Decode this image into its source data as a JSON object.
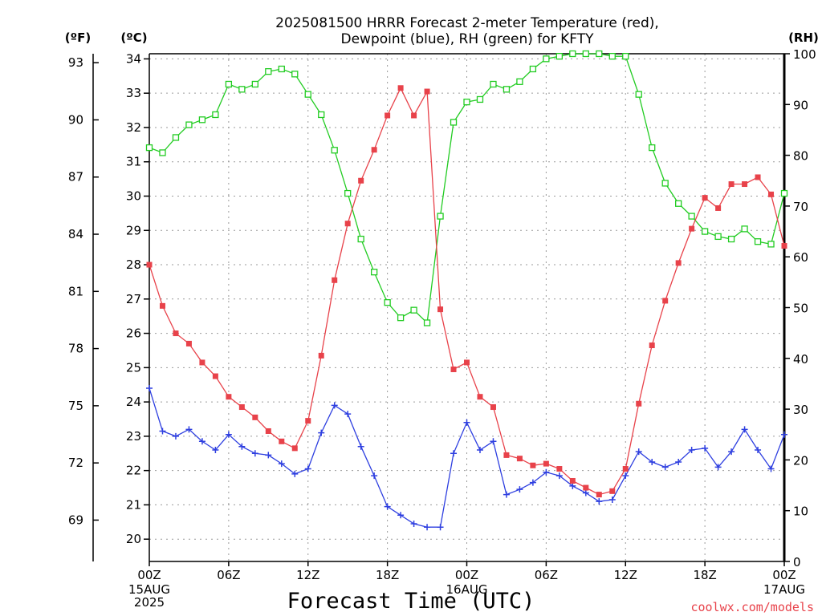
{
  "chart_data": {
    "type": "line",
    "title_lines": [
      "2025081500 HRRR Forecast 2-meter Temperature (red),",
      "Dewpoint (blue), RH (green) for KFTY"
    ],
    "xlabel": "Forecast Time (UTC)",
    "credit": "coolwx.com/models",
    "unit_labels": {
      "fahrenheit": "(ºF)",
      "celsius": "(ºC)",
      "rh": "(RH)"
    },
    "x_ticks": [
      {
        "h": 0,
        "label": "00Z"
      },
      {
        "h": 6,
        "label": "06Z"
      },
      {
        "h": 12,
        "label": "12Z"
      },
      {
        "h": 18,
        "label": "18Z"
      },
      {
        "h": 24,
        "label": "00Z"
      },
      {
        "h": 30,
        "label": "06Z"
      },
      {
        "h": 36,
        "label": "12Z"
      },
      {
        "h": 42,
        "label": "18Z"
      },
      {
        "h": 48,
        "label": "00Z"
      }
    ],
    "date_labels": [
      {
        "h": 0,
        "lines": [
          "15AUG",
          "2025"
        ]
      },
      {
        "h": 24,
        "lines": [
          "16AUG"
        ]
      },
      {
        "h": 48,
        "lines": [
          "17AUG"
        ]
      }
    ],
    "xlim": [
      0,
      48
    ],
    "ylim_c": [
      19.35,
      34.15
    ],
    "ylim_rh": [
      0,
      100
    ],
    "y_ticks_c": [
      "20",
      "21",
      "22",
      "23",
      "24",
      "25",
      "26",
      "27",
      "28",
      "29",
      "30",
      "31",
      "32",
      "33",
      "34"
    ],
    "y_ticks_f": [
      "69",
      "72",
      "75",
      "78",
      "81",
      "84",
      "87",
      "90",
      "93"
    ],
    "y_ticks_rh": [
      "0",
      "10",
      "20",
      "30",
      "40",
      "50",
      "60",
      "70",
      "80",
      "90",
      "100"
    ],
    "grid": true,
    "colors": {
      "temperature": "#e8424a",
      "dewpoint": "#2e3fe0",
      "rh": "#22cc22"
    },
    "series": [
      {
        "name": "2-meter Temperature",
        "axis": "celsius",
        "marker": "filled-square",
        "values": [
          28.0,
          26.8,
          26.0,
          25.7,
          25.15,
          24.75,
          24.15,
          23.85,
          23.55,
          23.15,
          22.85,
          22.65,
          23.45,
          25.35,
          27.55,
          29.2,
          30.45,
          31.35,
          32.35,
          33.15,
          32.35,
          33.05,
          26.7,
          24.95,
          25.15,
          24.15,
          23.85,
          22.45,
          22.35,
          22.15,
          22.2,
          22.05,
          21.7,
          21.5,
          21.3,
          21.4,
          22.05,
          23.95,
          25.65,
          26.95,
          28.05,
          29.05,
          29.95,
          29.65,
          30.35,
          30.35,
          30.55,
          30.05,
          28.55
        ]
      },
      {
        "name": "Dewpoint",
        "axis": "celsius",
        "marker": "plus",
        "values": [
          24.4,
          23.15,
          23.0,
          23.2,
          22.85,
          22.6,
          23.05,
          22.7,
          22.5,
          22.45,
          22.2,
          21.9,
          22.05,
          23.1,
          23.9,
          23.65,
          22.7,
          21.85,
          20.95,
          20.7,
          20.45,
          20.35,
          20.35,
          22.5,
          23.4,
          22.6,
          22.85,
          21.3,
          21.45,
          21.65,
          21.95,
          21.85,
          21.55,
          21.35,
          21.1,
          21.15,
          21.85,
          22.55,
          22.25,
          22.1,
          22.25,
          22.6,
          22.65,
          22.1,
          22.55,
          23.2,
          22.6,
          22.05,
          23.05
        ]
      },
      {
        "name": "RH",
        "axis": "rh",
        "marker": "open-square",
        "values": [
          81.5,
          80.5,
          83.5,
          86.0,
          87.0,
          88.0,
          94.0,
          93.0,
          94.0,
          96.5,
          97.0,
          96.0,
          92.0,
          88.0,
          81.0,
          72.5,
          63.5,
          57.0,
          51.0,
          48.0,
          49.5,
          47.0,
          68.0,
          86.5,
          90.5,
          91.0,
          94.0,
          93.0,
          94.5,
          97.0,
          99.0,
          99.5,
          100.0,
          100.0,
          100.0,
          99.5,
          99.5,
          92.0,
          81.5,
          74.5,
          70.5,
          68.0,
          65.0,
          64.0,
          63.5,
          65.5,
          63.0,
          62.5,
          72.5
        ]
      }
    ]
  }
}
